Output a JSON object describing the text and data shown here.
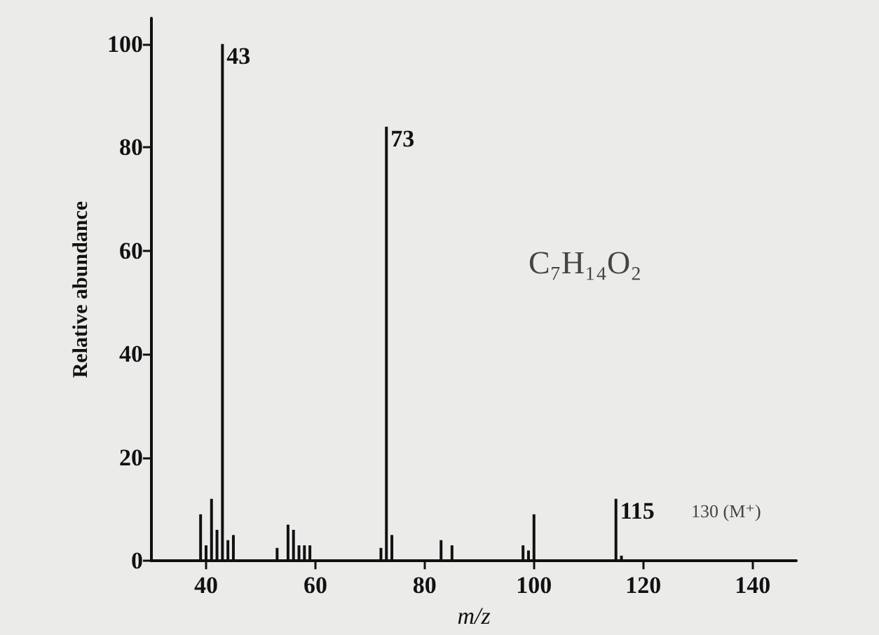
{
  "chart_data": {
    "type": "bar",
    "xlabel": "m/z",
    "ylabel": "Relative abundance",
    "x": [
      39,
      40,
      41,
      42,
      43,
      44,
      45,
      53,
      55,
      56,
      57,
      58,
      59,
      72,
      73,
      74,
      83,
      85,
      98,
      99,
      100,
      115,
      116
    ],
    "values": [
      9,
      3,
      12,
      6,
      100,
      4,
      5,
      2.5,
      7,
      6,
      3,
      3,
      3,
      2.5,
      84,
      5,
      4,
      3,
      3,
      2,
      9,
      12,
      1
    ],
    "color": "#111111",
    "xlim": [
      30,
      148
    ],
    "xticks": [
      40,
      60,
      80,
      100,
      120,
      140
    ],
    "ylim": [
      0,
      105
    ],
    "yticks": [
      0,
      20,
      40,
      60,
      80,
      100
    ],
    "annotations": [
      {
        "text": "43",
        "x": 43,
        "y": 100
      },
      {
        "text": "73",
        "x": 73,
        "y": 84
      },
      {
        "text": "115",
        "x": 115,
        "y": 12
      },
      "130 (M⁺)",
      "C₇H₁₄O₂"
    ],
    "grid": false
  }
}
